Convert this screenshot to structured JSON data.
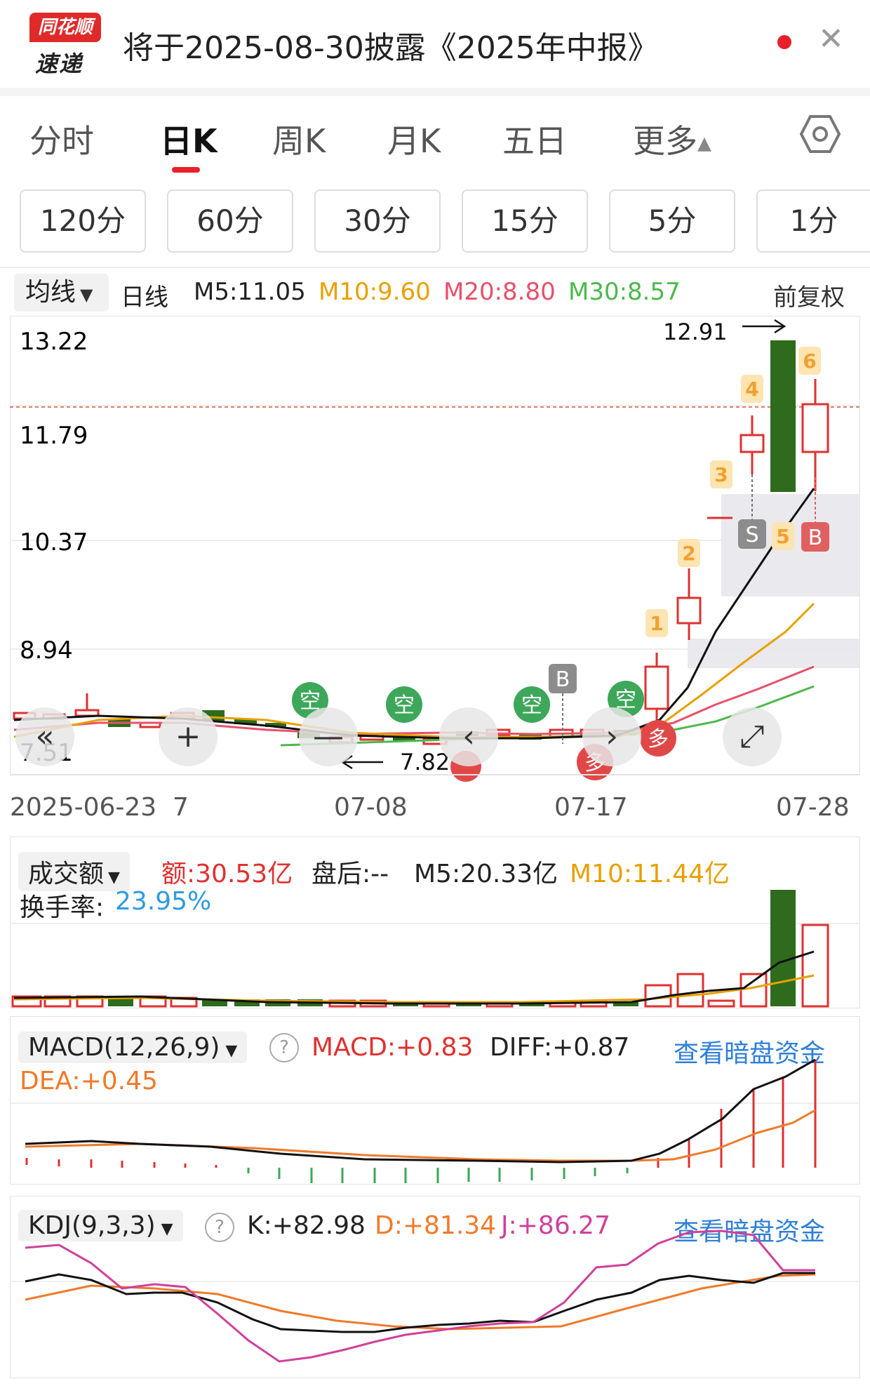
{
  "banner": {
    "logo_line1": "同花顺",
    "logo_line2": "速递",
    "title": "将于2025-08-30披露《2025年中报》",
    "close_glyph": "✕"
  },
  "period_tabs": [
    {
      "label": "分时",
      "active": false
    },
    {
      "label": "日K",
      "active": true
    },
    {
      "label": "周K",
      "active": false
    },
    {
      "label": "月K",
      "active": false
    },
    {
      "label": "五日",
      "active": false
    },
    {
      "label": "更多",
      "active": false
    }
  ],
  "more_arrow": "▲",
  "minute_buttons": [
    "120分",
    "60分",
    "30分",
    "15分",
    "5分",
    "1分"
  ],
  "ma_header": {
    "selector": "均线",
    "selector_arrow": "▼",
    "period": "日线",
    "m5": "M5:11.05",
    "m10": "M10:9.60",
    "m20": "M20:8.80",
    "m30": "M30:8.57",
    "adjust": "前复权",
    "colors": {
      "m5": "#222222",
      "m10": "#e8a000",
      "m20": "#e8506a",
      "m30": "#4cb84c"
    }
  },
  "kline": {
    "y_ticks": [
      "13.22",
      "11.79",
      "10.37",
      "8.94",
      "7.51"
    ],
    "high_label": "12.91",
    "low_label": "7.82",
    "x_ticks": [
      "2025-06-23",
      "07-08",
      "07-17",
      "07-28"
    ],
    "x_partial": "7",
    "signals": {
      "kong": "空",
      "duo": "多",
      "buy": "B",
      "sell": "S",
      "numbers": [
        "1",
        "2",
        "3",
        "4",
        "5",
        "6"
      ]
    },
    "nav": {
      "left_double": "«",
      "minus": "—",
      "prev": "‹",
      "next": "›",
      "fullscreen": "⤢"
    }
  },
  "volume": {
    "selector": "成交额",
    "selector_arrow": "▼",
    "amount": "额:30.53亿",
    "after_hours": "盘后:--",
    "m5": "M5:20.33亿",
    "m10": "M10:11.44亿",
    "turnover_label": "换手率:",
    "turnover_value": "23.95%"
  },
  "macd": {
    "selector": "MACD(12,26,9)",
    "selector_arrow": "▼",
    "help": "?",
    "macd": "MACD:+0.83",
    "diff": "DIFF:+0.87",
    "dea": "DEA:+0.45",
    "link": "查看暗盘资金"
  },
  "kdj": {
    "selector": "KDJ(9,3,3)",
    "selector_arrow": "▼",
    "help": "?",
    "k": "K:+82.98",
    "d": "D:+81.34",
    "j": "J:+86.27",
    "link": "查看暗盘资金"
  }
}
